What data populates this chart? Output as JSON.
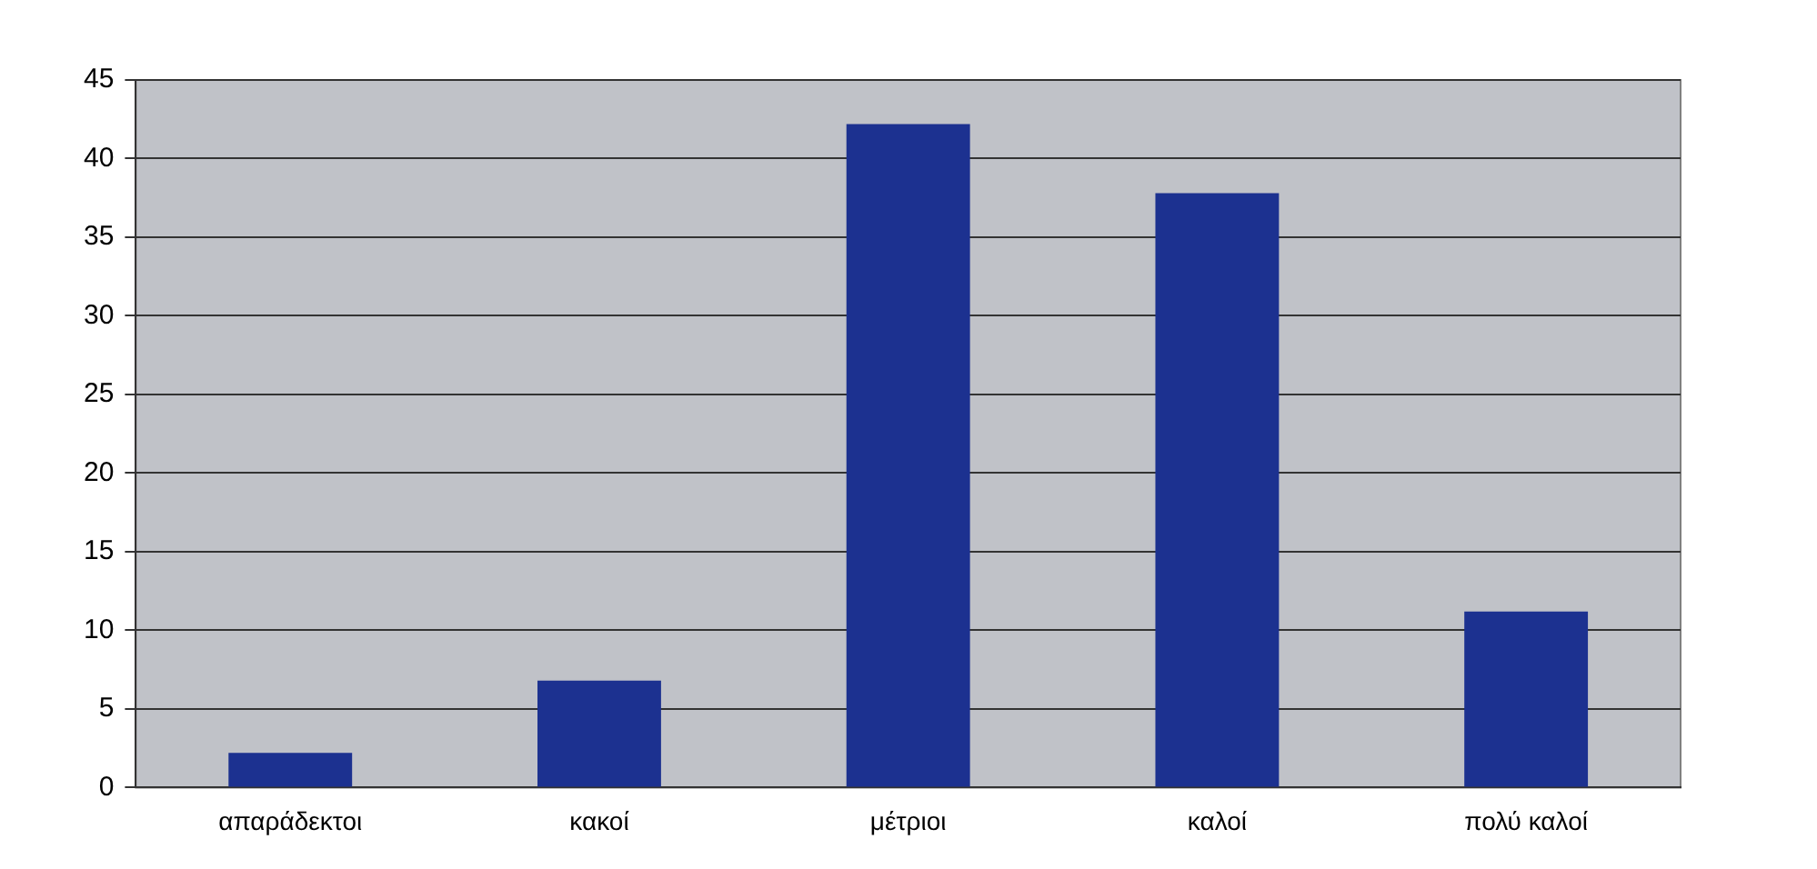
{
  "chart_data": {
    "type": "bar",
    "categories": [
      "απαράδεκτοι",
      "κακοί",
      "μέτριοι",
      "καλοί",
      "πολύ καλοί"
    ],
    "values": [
      2.2,
      6.8,
      42.2,
      37.8,
      11.2
    ],
    "color": "#1c3190",
    "ylim": [
      0,
      45
    ],
    "yticks": [
      0,
      5,
      10,
      15,
      20,
      25,
      30,
      35,
      40,
      45
    ],
    "grid": "y",
    "legend": false
  }
}
